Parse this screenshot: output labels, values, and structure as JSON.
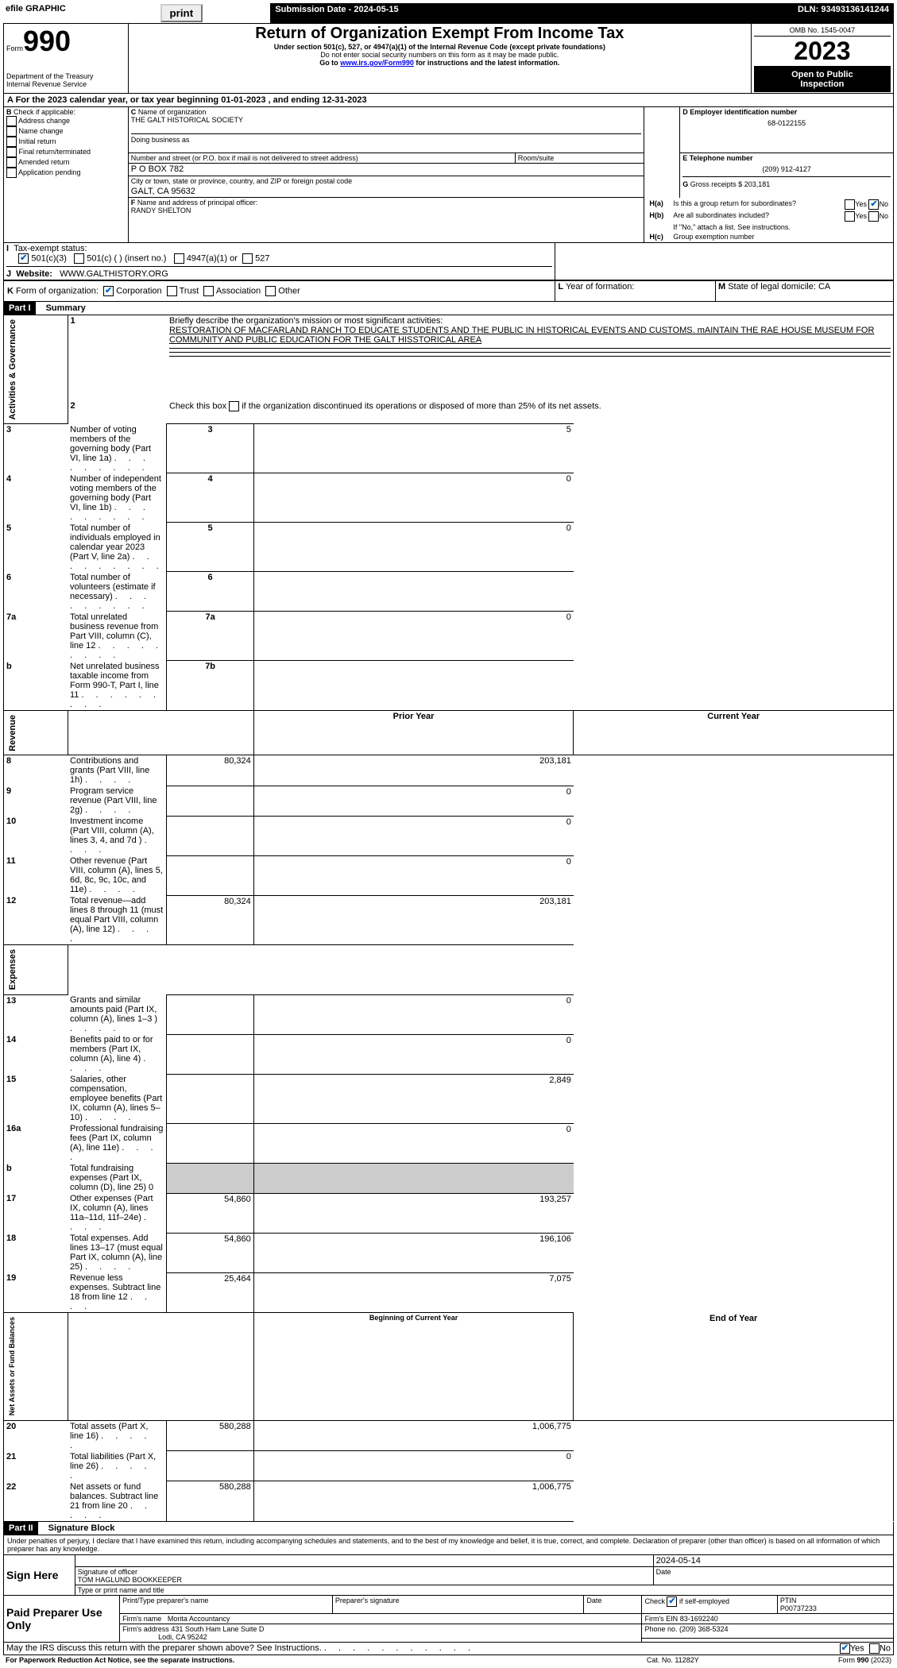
{
  "topbar": {
    "efile_label": "efile GRAPHIC",
    "print_btn": "print",
    "submission_label": "Submission Date - 2024-05-15",
    "dln_label": "DLN: 93493136141244"
  },
  "header": {
    "form_label": "Form",
    "form_number": "990",
    "dept": "Department of the Treasury",
    "irs": "Internal Revenue Service",
    "title": "Return of Organization Exempt From Income Tax",
    "subtitle1": "Under section 501(c), 527, or 4947(a)(1) of the Internal Revenue Code (except private foundations)",
    "subtitle2": "Do not enter social security numbers on this form as it may be made public.",
    "subtitle3_prefix": "Go to ",
    "subtitle3_link": "www.irs.gov/Form990",
    "subtitle3_suffix": " for instructions and the latest information.",
    "omb": "OMB No. 1545-0047",
    "year": "2023",
    "inspection1": "Open to Public",
    "inspection2": "Inspection"
  },
  "line_a": {
    "text_prefix": "A For the 2023 calendar year, or tax year beginning ",
    "begin": "01-01-2023",
    "mid": " , and ending ",
    "end": "12-31-2023"
  },
  "box_b": {
    "label": "B",
    "check_label": "Check if applicable:",
    "items": [
      "Address change",
      "Name change",
      "Initial return",
      "Final return/terminated",
      "Amended return",
      "Application pending"
    ]
  },
  "box_c": {
    "label": "C",
    "name_label": "Name of organization",
    "name": "THE GALT HISTORICAL SOCIETY",
    "dba_label": "Doing business as",
    "street_label": "Number and street (or P.O. box if mail is not delivered to street address)",
    "room_label": "Room/suite",
    "street": "P O BOX 782",
    "city_label": "City or town, state or province, country, and ZIP or foreign postal code",
    "city": "GALT, CA  95632"
  },
  "box_d": {
    "label": "D Employer identification number",
    "value": "68-0122155"
  },
  "box_e": {
    "label": "E Telephone number",
    "value": "(209) 912-4127"
  },
  "box_g": {
    "label": "G",
    "text": "Gross receipts $",
    "value": "203,181"
  },
  "box_f": {
    "label": "F",
    "text": "Name and address of principal officer:",
    "value": "RANDY SHELTON"
  },
  "box_h": {
    "ha_label": "H(a)",
    "ha_text": "Is this a group return for subordinates?",
    "hb_label": "H(b)",
    "hb_text": "Are all subordinates included?",
    "hb_note": "If \"No,\" attach a list. See instructions.",
    "hc_label": "H(c)",
    "hc_text": "Group exemption number",
    "yes": "Yes",
    "no": "No"
  },
  "box_i": {
    "label": "I",
    "text": "Tax-exempt status:",
    "opt1": "501(c)(3)",
    "opt2": "501(c) (   ) (insert no.)",
    "opt3": "4947(a)(1) or",
    "opt4": "527"
  },
  "box_j": {
    "label": "J",
    "text": "Website:",
    "value": "WWW.GALTHISTORY.ORG"
  },
  "box_k": {
    "label": "K",
    "text": "Form of organization:",
    "opts": [
      "Corporation",
      "Trust",
      "Association",
      "Other"
    ]
  },
  "box_l": {
    "label": "L",
    "text": "Year of formation:"
  },
  "box_m": {
    "label": "M",
    "text": "State of legal domicile:",
    "value": "CA"
  },
  "part1": {
    "label": "Part I",
    "title": "Summary"
  },
  "sections": {
    "governance": "Activities & Governance",
    "revenue": "Revenue",
    "expenses": "Expenses",
    "netassets": "Net Assets or Fund Balances"
  },
  "q1": {
    "num": "1",
    "label": "Briefly describe the organization's mission or most significant activities:",
    "text": "RESTORATION OF MACFARLAND RANCH TO EDUCATE STUDENTS AND THE PUBLIC IN HISTORICAL EVENTS AND CUSTOMS. mAINTAIN THE RAE HOUSE MUSEUM FOR COMMUNITY AND PUBLIC EDUCATION FOR THE GALT HISSTORICAL AREA"
  },
  "q2": {
    "num": "2",
    "text": "Check this box          if the organization discontinued its operations or disposed of more than 25% of its net assets."
  },
  "rows_gov": [
    {
      "num": "3",
      "text": "Number of voting members of the governing body (Part VI, line 1a)",
      "box": "3",
      "val": "5"
    },
    {
      "num": "4",
      "text": "Number of independent voting members of the governing body (Part VI, line 1b)",
      "box": "4",
      "val": "0"
    },
    {
      "num": "5",
      "text": "Total number of individuals employed in calendar year 2023 (Part V, line 2a)",
      "box": "5",
      "val": "0"
    },
    {
      "num": "6",
      "text": "Total number of volunteers (estimate if necessary)",
      "box": "6",
      "val": ""
    },
    {
      "num": "7a",
      "text": "Total unrelated business revenue from Part VIII, column (C), line 12",
      "box": "7a",
      "val": "0"
    },
    {
      "num": "b",
      "text": "Net unrelated business taxable income from Form 990-T, Part I, line 11",
      "box": "7b",
      "val": ""
    }
  ],
  "col_headers": {
    "prior": "Prior Year",
    "current": "Current Year"
  },
  "rows_rev": [
    {
      "num": "8",
      "text": "Contributions and grants (Part VIII, line 1h)",
      "prior": "80,324",
      "curr": "203,181"
    },
    {
      "num": "9",
      "text": "Program service revenue (Part VIII, line 2g)",
      "prior": "",
      "curr": "0"
    },
    {
      "num": "10",
      "text": "Investment income (Part VIII, column (A), lines 3, 4, and 7d )",
      "prior": "",
      "curr": "0"
    },
    {
      "num": "11",
      "text": "Other revenue (Part VIII, column (A), lines 5, 6d, 8c, 9c, 10c, and 11e)",
      "prior": "",
      "curr": "0"
    },
    {
      "num": "12",
      "text": "Total revenue—add lines 8 through 11 (must equal Part VIII, column (A), line 12)",
      "prior": "80,324",
      "curr": "203,181"
    }
  ],
  "rows_exp": [
    {
      "num": "13",
      "text": "Grants and similar amounts paid (Part IX, column (A), lines 1–3 )",
      "prior": "",
      "curr": "0"
    },
    {
      "num": "14",
      "text": "Benefits paid to or for members (Part IX, column (A), line 4)",
      "prior": "",
      "curr": "0"
    },
    {
      "num": "15",
      "text": "Salaries, other compensation, employee benefits (Part IX, column (A), lines 5–10)",
      "prior": "",
      "curr": "2,849"
    },
    {
      "num": "16a",
      "text": "Professional fundraising fees (Part IX, column (A), line 11e)",
      "prior": "",
      "curr": "0"
    },
    {
      "num": "b",
      "text": "Total fundraising expenses (Part IX, column (D), line 25) 0",
      "prior": "gray",
      "curr": "gray"
    },
    {
      "num": "17",
      "text": "Other expenses (Part IX, column (A), lines 11a–11d, 11f–24e)",
      "prior": "54,860",
      "curr": "193,257"
    },
    {
      "num": "18",
      "text": "Total expenses. Add lines 13–17 (must equal Part IX, column (A), line 25)",
      "prior": "54,860",
      "curr": "196,106"
    },
    {
      "num": "19",
      "text": "Revenue less expenses. Subtract line 18 from line 12",
      "prior": "25,464",
      "curr": "7,075"
    }
  ],
  "col_headers2": {
    "begin": "Beginning of Current Year",
    "end": "End of Year"
  },
  "rows_net": [
    {
      "num": "20",
      "text": "Total assets (Part X, line 16)",
      "prior": "580,288",
      "curr": "1,006,775"
    },
    {
      "num": "21",
      "text": "Total liabilities (Part X, line 26)",
      "prior": "",
      "curr": "0"
    },
    {
      "num": "22",
      "text": "Net assets or fund balances. Subtract line 21 from line 20",
      "prior": "580,288",
      "curr": "1,006,775"
    }
  ],
  "part2": {
    "label": "Part II",
    "title": "Signature Block"
  },
  "perjury": "Under penalties of perjury, I declare that I have examined this return, including accompanying schedules and statements, and to the best of my knowledge and belief, it is true, correct, and complete. Declaration of preparer (other than officer) is based on all information of which preparer has any knowledge.",
  "sign": {
    "label": "Sign Here",
    "sig_label": "Signature of officer",
    "name": "TOM HAGLUND BOOKKEEPER",
    "type_label": "Type or print name and title",
    "date_label": "Date",
    "date": "2024-05-14"
  },
  "preparer": {
    "label": "Paid Preparer Use Only",
    "name_label": "Print/Type preparer's name",
    "sig_label": "Preparer's signature",
    "date_label": "Date",
    "check_label": "Check         if self-employed",
    "ptin_label": "PTIN",
    "ptin": "P00737233",
    "firm_name_label": "Firm's name",
    "firm_name": "Morita Accountancy",
    "firm_ein_label": "Firm's EIN",
    "firm_ein": "83-1692240",
    "firm_addr_label": "Firm's address",
    "firm_addr1": "431 South Ham Lane Suite D",
    "firm_addr2": "Lodi, CA  95242",
    "phone_label": "Phone no.",
    "phone": "(209) 368-5324"
  },
  "discuss": {
    "text": "May the IRS discuss this return with the preparer shown above? See Instructions.",
    "yes": "Yes",
    "no": "No"
  },
  "footer": {
    "left": "For Paperwork Reduction Act Notice, see the separate instructions.",
    "mid": "Cat. No. 11282Y",
    "right_prefix": "Form ",
    "right_form": "990",
    "right_suffix": " (2023)"
  }
}
